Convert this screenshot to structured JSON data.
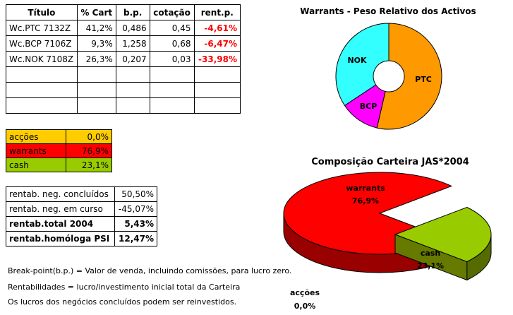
{
  "warrants_table": {
    "headers": [
      "Título",
      "% Cart",
      "b.p.",
      "cotação",
      "rent.p."
    ],
    "rows": [
      [
        "Wc.PTC 7132Z",
        "41,2%",
        "0,486",
        "0,45",
        "-4,61%"
      ],
      [
        "Wc.BCP 7106Z",
        "9,3%",
        "1,258",
        "0,68",
        "-6,47%"
      ],
      [
        "Wc.NOK 7108Z",
        "26,3%",
        "0,207",
        "0,03",
        "-33,98%"
      ]
    ],
    "empty_rows": 3
  },
  "allocation": [
    {
      "label": "acções",
      "value": "0,0%",
      "color": "#ffcc00"
    },
    {
      "label": "warrants",
      "value": "76,9%",
      "color": "#ff0000"
    },
    {
      "label": "cash",
      "value": "23,1%",
      "color": "#99cc00"
    }
  ],
  "rentabilidade": [
    {
      "label": "rentab. neg. concluídos",
      "value": "50,50%",
      "bold": false
    },
    {
      "label": "rentab. neg. em curso",
      "value": "-45,07%",
      "bold": false
    },
    {
      "label": "rentab.total 2004",
      "value": "5,43%",
      "bold": true
    },
    {
      "label": "rentab.homóloga PSI",
      "value": "12,47%",
      "bold": true
    }
  ],
  "notes": [
    "Break-point(b.p.) = Valor de venda, incluindo comissões, para lucro zero.",
    "Rentabilidades = lucro/investimento inicial total da Carteira",
    "Os lucros dos negócios concluídos podem ser reinvestidos."
  ],
  "chart_data": [
    {
      "type": "pie",
      "title": "Warrants - Peso Relativo dos Activos",
      "categories": [
        "PTC",
        "BCP",
        "NOK"
      ],
      "values": [
        53.6,
        12.1,
        34.3
      ],
      "colors": [
        "#ff9900",
        "#ff00ff",
        "#33ffff"
      ]
    },
    {
      "type": "pie",
      "title": "Composição Carteira JAS*2004",
      "categories": [
        "warrants",
        "cash",
        "acções"
      ],
      "values": [
        76.9,
        23.1,
        0.0
      ],
      "labels": [
        "76,9%",
        "23,1%",
        "0,0%"
      ],
      "colors": [
        "#ff0000",
        "#99cc00",
        "#ffcc00"
      ]
    }
  ]
}
